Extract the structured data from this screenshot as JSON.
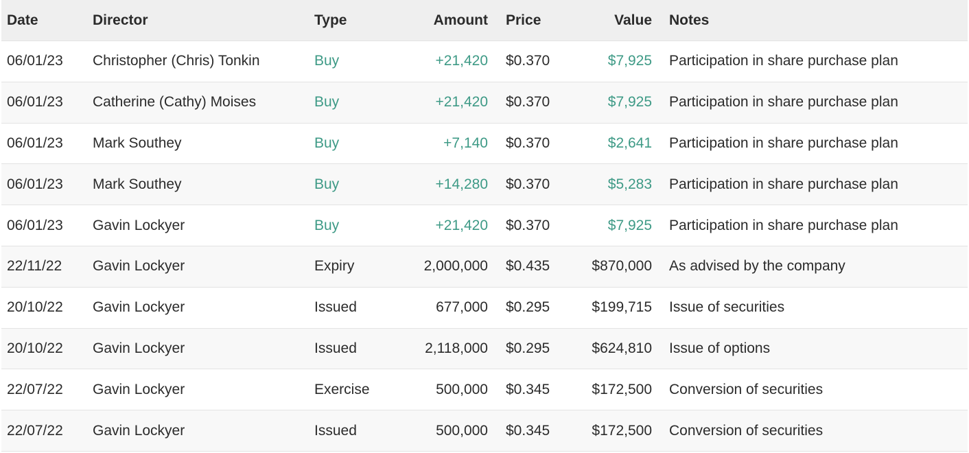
{
  "table": {
    "header": [
      "Date",
      "Director",
      "Type",
      "Amount",
      "Price",
      "Value",
      "Notes"
    ],
    "rows": [
      [
        "06/01/23",
        "Christopher (Chris) Tonkin",
        "Buy",
        "+21,420",
        "$0.370",
        "$7,925",
        "Participation in share purchase plan"
      ],
      [
        "06/01/23",
        "Catherine (Cathy) Moises",
        "Buy",
        "+21,420",
        "$0.370",
        "$7,925",
        "Participation in share purchase plan"
      ],
      [
        "06/01/23",
        "Mark Southey",
        "Buy",
        "+7,140",
        "$0.370",
        "$2,641",
        "Participation in share purchase plan"
      ],
      [
        "06/01/23",
        "Mark Southey",
        "Buy",
        "+14,280",
        "$0.370",
        "$5,283",
        "Participation in share purchase plan"
      ],
      [
        "06/01/23",
        "Gavin Lockyer",
        "Buy",
        "+21,420",
        "$0.370",
        "$7,925",
        "Participation in share purchase plan"
      ],
      [
        "22/11/22",
        "Gavin Lockyer",
        "Expiry",
        "2,000,000",
        "$0.435",
        "$870,000",
        "As advised by the company"
      ],
      [
        "20/10/22",
        "Gavin Lockyer",
        "Issued",
        "677,000",
        "$0.295",
        "$199,715",
        "Issue of securities"
      ],
      [
        "20/10/22",
        "Gavin Lockyer",
        "Issued",
        "2,118,000",
        "$0.295",
        "$624,810",
        "Issue of options"
      ],
      [
        "22/07/22",
        "Gavin Lockyer",
        "Exercise",
        "500,000",
        "$0.345",
        "$172,500",
        "Conversion of securities"
      ],
      [
        "22/07/22",
        "Gavin Lockyer",
        "Issued",
        "500,000",
        "$0.345",
        "$172,500",
        "Conversion of securities"
      ]
    ],
    "highlight": {
      "color": "#3e9a86",
      "rows": [
        0,
        1,
        2,
        3,
        4
      ],
      "columns": [
        2,
        3,
        5
      ]
    }
  }
}
